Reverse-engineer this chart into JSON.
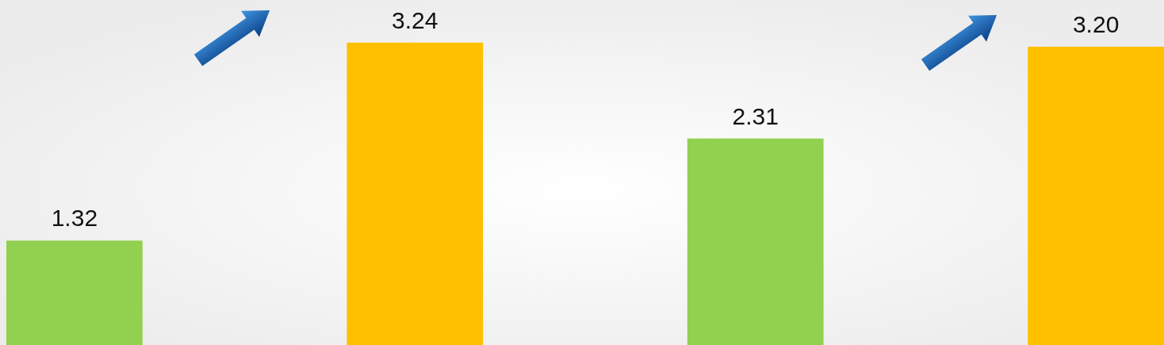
{
  "chart_data": {
    "type": "bar",
    "categories": [
      null,
      null,
      null,
      null
    ],
    "values": [
      1.32,
      3.24,
      2.31,
      3.2
    ],
    "value_labels": [
      "1.32",
      "3.24",
      "2.31",
      "3.20"
    ],
    "colors": [
      "#92d050",
      "#ffc000",
      "#92d050",
      "#ffc000"
    ]
  }
}
